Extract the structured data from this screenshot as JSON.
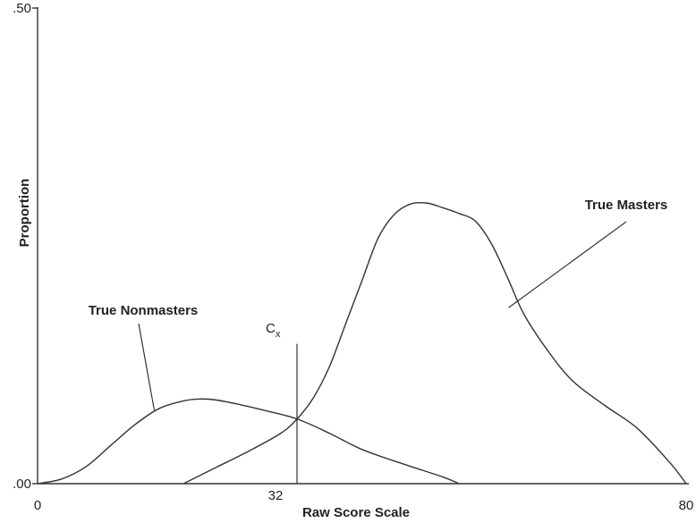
{
  "chart_data": {
    "type": "line",
    "title": "",
    "xlabel": "Raw Score Scale",
    "ylabel": "Proportion",
    "xlim": [
      0,
      80
    ],
    "ylim": [
      0,
      0.5
    ],
    "x_ticks": [
      {
        "value": 0,
        "label": "0"
      },
      {
        "value": 32,
        "label": "32"
      },
      {
        "value": 80,
        "label": "80"
      }
    ],
    "y_ticks": [
      {
        "value": 0,
        "label": ".00"
      },
      {
        "value": 0.5,
        "label": ".50"
      }
    ],
    "grid": false,
    "cutoff": {
      "label_main": "C",
      "label_sub": "x",
      "x": 32,
      "y_top": 0.147
    },
    "series": [
      {
        "name": "True Nonmasters",
        "x": [
          0,
          3,
          6,
          9,
          12,
          15,
          18,
          20,
          22,
          25,
          28,
          32,
          36,
          40,
          45,
          50,
          52
        ],
        "y": [
          0,
          0.005,
          0.018,
          0.04,
          0.062,
          0.079,
          0.087,
          0.089,
          0.088,
          0.083,
          0.077,
          0.068,
          0.053,
          0.036,
          0.021,
          0.007,
          0
        ]
      },
      {
        "name": "True Masters",
        "x": [
          18,
          22,
          26,
          30,
          32,
          34,
          36,
          38,
          40,
          42,
          44,
          46,
          48,
          50,
          52,
          54,
          56,
          58,
          60,
          63,
          66,
          70,
          74,
          78,
          80
        ],
        "y": [
          0,
          0.017,
          0.034,
          0.053,
          0.068,
          0.09,
          0.123,
          0.168,
          0.213,
          0.258,
          0.283,
          0.294,
          0.295,
          0.29,
          0.284,
          0.276,
          0.252,
          0.216,
          0.178,
          0.139,
          0.108,
          0.082,
          0.058,
          0.022,
          0
        ]
      }
    ],
    "annotations": [
      {
        "text": "True Nonmasters",
        "series": "True Nonmasters",
        "point_x": 14.4,
        "point_y": 0.077
      },
      {
        "text": "True Masters",
        "series": "True Masters",
        "point_x": 58.1,
        "point_y": 0.185
      }
    ]
  }
}
